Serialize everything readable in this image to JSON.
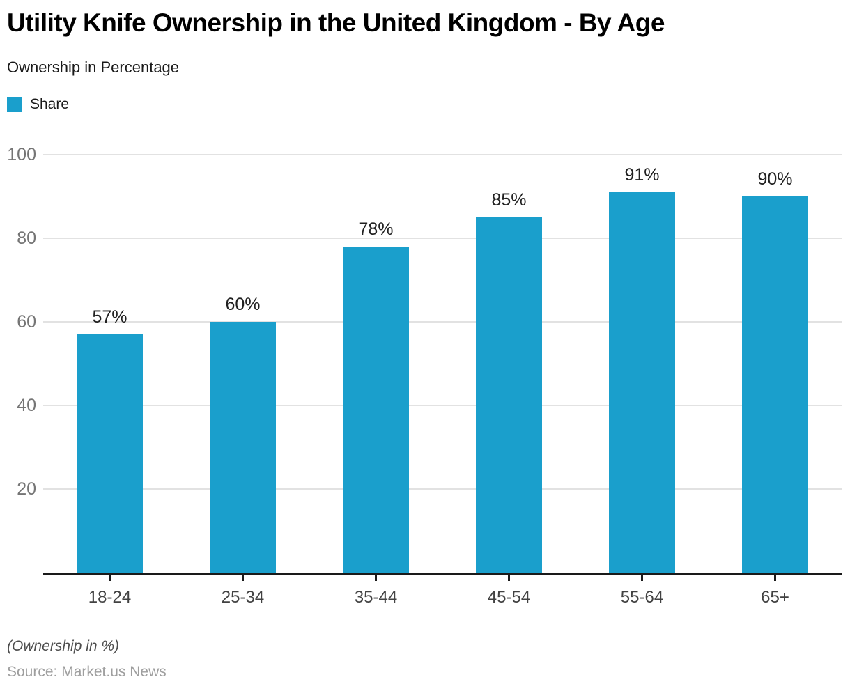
{
  "chart_data": {
    "type": "bar",
    "title": "Utility Knife Ownership in the United Kingdom - By Age",
    "subtitle": "Ownership in Percentage",
    "categories": [
      "18-24",
      "25-34",
      "35-44",
      "45-54",
      "55-64",
      "65+"
    ],
    "series": [
      {
        "name": "Share",
        "values": [
          57,
          60,
          78,
          85,
          91,
          90
        ]
      }
    ],
    "value_labels": [
      "57%",
      "60%",
      "78%",
      "85%",
      "91%",
      "90%"
    ],
    "ylim": [
      0,
      100
    ],
    "y_ticks": [
      20,
      40,
      60,
      80,
      100
    ],
    "grid": true,
    "legend_position": "top-left",
    "xlabel": "",
    "ylabel": ""
  },
  "legend": {
    "share_label": "Share"
  },
  "footer": {
    "note": "(Ownership in %)",
    "source": "Source: Market.us News"
  },
  "colors": {
    "bar": "#1A9FCC",
    "gridline": "#e2e2e2",
    "axis": "#1a1a1a",
    "y_tick_label": "#757575",
    "x_tick_label": "#424242",
    "value_label": "#212121",
    "note": "#4d4d4d",
    "source": "#9e9e9e"
  }
}
